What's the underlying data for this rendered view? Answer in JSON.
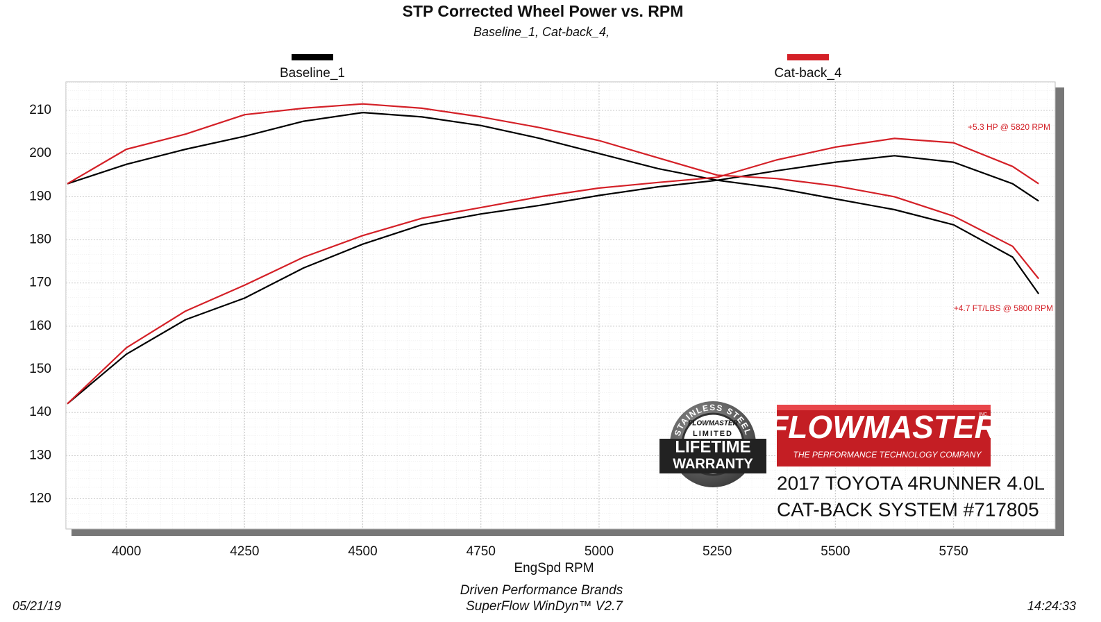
{
  "chart_data": {
    "type": "line",
    "title": "STP Corrected Wheel Power vs. RPM",
    "subtitle": "Baseline_1, Cat-back_4,",
    "x_label": "EngSpd  RPM",
    "x": [
      3875,
      4000,
      4125,
      4250,
      4375,
      4500,
      4625,
      4750,
      4875,
      5000,
      5125,
      5250,
      5375,
      5500,
      5625,
      5750,
      5875,
      5930
    ],
    "series": [
      {
        "name": "Baseline_1",
        "color": "#000000",
        "values": [
          142,
          153.5,
          161.5,
          166.5,
          173.5,
          179,
          183.5,
          186,
          188,
          190.3,
          192.3,
          193.8,
          196,
          198,
          199.5,
          198,
          193,
          189
        ],
        "torque": [
          193,
          197.5,
          201,
          204,
          207.5,
          209.5,
          208.5,
          206.5,
          203.5,
          200,
          196.5,
          193.8,
          192,
          189.5,
          187,
          183.5,
          176,
          167.5
        ]
      },
      {
        "name": "Cat-back_4",
        "color": "#d42027",
        "values": [
          142,
          155,
          163.5,
          169.5,
          176,
          181,
          185,
          187.5,
          190,
          192,
          193.3,
          194.5,
          198.5,
          201.5,
          203.5,
          202.5,
          197,
          193
        ],
        "torque": [
          193,
          201,
          204.5,
          209,
          210.5,
          211.5,
          210.5,
          208.5,
          206,
          203,
          199,
          195,
          194.2,
          192.5,
          190,
          185.5,
          178.5,
          171
        ]
      }
    ],
    "xlim": [
      3872,
      5965
    ],
    "ylim": [
      113,
      216.6
    ],
    "xticks": [
      4000,
      4250,
      4500,
      4750,
      5000,
      5250,
      5500,
      5750
    ],
    "yticks": [
      120,
      130,
      140,
      150,
      160,
      170,
      180,
      190,
      200,
      210
    ],
    "grid": true,
    "annotations": [
      "+5.3 HP @ 5820 RPM",
      "+4.7 FT/LBS @ 5800 RPM"
    ],
    "badge": {
      "ring": "STAINLESS STEEL",
      "brand": "FLOWMASTER",
      "limited": "LIMITED",
      "lifetime": "LIFETIME",
      "warranty": "WARRANTY"
    },
    "logo": {
      "brand": "FLOWMASTER",
      "inc": "INC.",
      "tagline": "THE PERFORMANCE TECHNOLOGY COMPANY"
    },
    "vehicle": [
      "2017 TOYOTA 4RUNNER 4.0L",
      "CAT-BACK SYSTEM #717805"
    ],
    "footer": {
      "date": "05/21/19",
      "time": "14:24:33",
      "company": "Driven Performance Brands",
      "software": "SuperFlow WinDyn™ V2.7"
    }
  }
}
